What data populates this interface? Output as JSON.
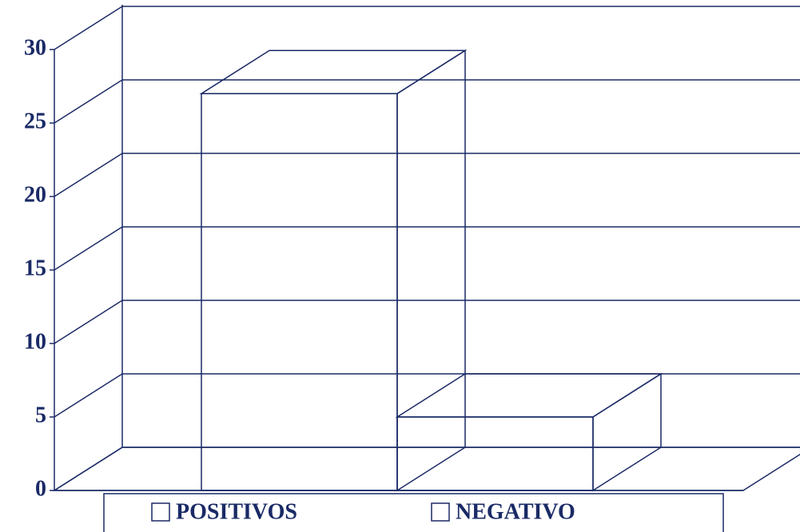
{
  "chart_data": {
    "type": "bar",
    "series": [
      {
        "name": "POSITIVOS",
        "color": "#ade8ad",
        "values": [
          27
        ]
      },
      {
        "name": "NEGATIVO",
        "color": "#3ae6e6",
        "values": [
          5
        ]
      }
    ],
    "ylim": [
      0,
      30
    ],
    "yticks": [
      0,
      5,
      10,
      15,
      20,
      25,
      30
    ],
    "grid": true,
    "legend": "bottom"
  }
}
